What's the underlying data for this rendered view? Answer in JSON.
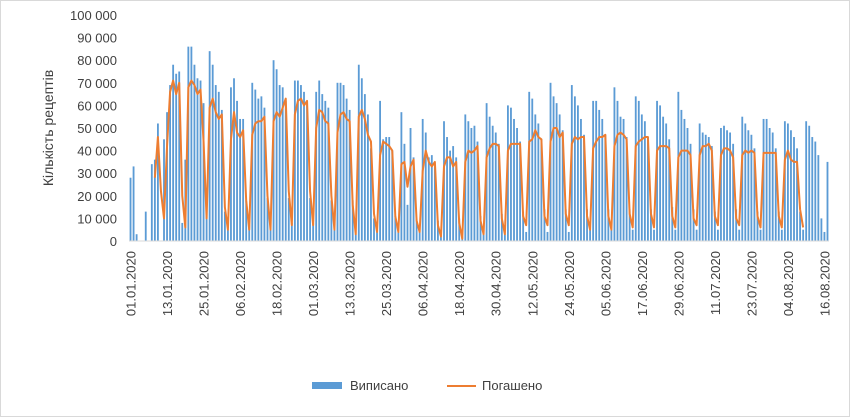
{
  "chart_data": {
    "type": "bar",
    "ylabel": "Кількість рецептів",
    "ylim": [
      0,
      100000
    ],
    "ytick_labels": [
      "0",
      "10 000",
      "20 000",
      "30 000",
      "40 000",
      "50 000",
      "60 000",
      "70 000",
      "80 000",
      "90 000",
      "100 000"
    ],
    "yticks": [
      0,
      10000,
      20000,
      30000,
      40000,
      50000,
      60000,
      70000,
      80000,
      90000,
      100000
    ],
    "x_start": "01.01.2020",
    "x_end": "16.08.2020",
    "x_tick_labels": [
      "01.01.2020",
      "13.01.2020",
      "25.01.2020",
      "06.02.2020",
      "18.02.2020",
      "01.03.2020",
      "13.03.2020",
      "25.03.2020",
      "06.04.2020",
      "18.04.2020",
      "30.04.2020",
      "12.05.2020",
      "24.05.2020",
      "05.06.2020",
      "17.06.2020",
      "29.06.2020",
      "11.07.2020",
      "23.07.2020",
      "04.08.2020",
      "16.08.2020"
    ],
    "grid": false,
    "legend_position": "bottom",
    "series": [
      {
        "name": "Виписано",
        "kind": "bar",
        "color": "#5b9bd5",
        "values": [
          28000,
          33000,
          3000,
          0,
          0,
          13000,
          0,
          34000,
          36000,
          52000,
          0,
          45000,
          57000,
          69000,
          78000,
          74000,
          75000,
          8000,
          36000,
          86000,
          86000,
          78000,
          72000,
          71000,
          61000,
          18000,
          84000,
          78000,
          69000,
          66000,
          58000,
          13000,
          5000,
          68000,
          72000,
          62000,
          54000,
          54000,
          18000,
          7000,
          70000,
          67000,
          63000,
          64000,
          59000,
          19000,
          7000,
          80000,
          76000,
          69000,
          68000,
          62000,
          19000,
          8000,
          71000,
          71000,
          69000,
          66000,
          62000,
          19000,
          8000,
          66000,
          71000,
          65000,
          62000,
          59000,
          18000,
          5000,
          70000,
          70000,
          69000,
          63000,
          58000,
          18000,
          3000,
          78000,
          72000,
          65000,
          56000,
          41000,
          10000,
          4000,
          62000,
          45000,
          46000,
          46000,
          40000,
          11000,
          4000,
          57000,
          43000,
          16000,
          50000,
          37000,
          10000,
          4000,
          54000,
          48000,
          37000,
          38000,
          33000,
          9000,
          3000,
          53000,
          46000,
          40000,
          42000,
          37000,
          10000,
          2000,
          56000,
          53000,
          50000,
          51000,
          44000,
          11000,
          3000,
          61000,
          55000,
          51000,
          48000,
          43000,
          12000,
          3000,
          60000,
          59000,
          54000,
          50000,
          44000,
          13000,
          4000,
          66000,
          63000,
          56000,
          52000,
          45000,
          14000,
          4000,
          70000,
          64000,
          61000,
          56000,
          49000,
          14000,
          4000,
          69000,
          64000,
          60000,
          54000,
          47000,
          14000,
          5000,
          62000,
          62000,
          58000,
          54000,
          47000,
          14000,
          5000,
          68000,
          62000,
          55000,
          54000,
          46000,
          14000,
          5000,
          64000,
          62000,
          56000,
          53000,
          46000,
          14000,
          5000,
          62000,
          60000,
          55000,
          52000,
          45000,
          15000,
          5000,
          66000,
          58000,
          54000,
          50000,
          43000,
          14000,
          5000,
          52000,
          48000,
          47000,
          46000,
          42000,
          13000,
          5000,
          50000,
          51000,
          49000,
          48000,
          43000,
          14000,
          5000,
          55000,
          52000,
          49000,
          47000,
          41000,
          13000,
          5000,
          54000,
          54000,
          50000,
          48000,
          41000,
          13000,
          5000,
          53000,
          52000,
          49000,
          46000,
          41000,
          13000,
          5000,
          53000,
          51000,
          46000,
          44000,
          38000,
          10000,
          4000
        ],
        "plus_one_extra": 35000
      },
      {
        "name": "Погашено",
        "kind": "line",
        "color": "#ed7d31",
        "values": [
          0,
          0,
          0,
          0,
          0,
          0,
          0,
          0,
          28000,
          46000,
          22000,
          10000,
          42000,
          66000,
          71000,
          65000,
          70000,
          20000,
          6000,
          68000,
          71000,
          69000,
          65000,
          67000,
          44000,
          10000,
          59000,
          63000,
          57000,
          54000,
          56000,
          15000,
          5000,
          45000,
          57000,
          48000,
          46000,
          49000,
          18000,
          5000,
          47000,
          52000,
          53000,
          53000,
          55000,
          20000,
          5000,
          53000,
          57000,
          55000,
          59000,
          63000,
          22000,
          7000,
          56000,
          62000,
          63000,
          60000,
          62000,
          22000,
          7000,
          50000,
          58000,
          57000,
          53000,
          52000,
          20000,
          5000,
          48000,
          56000,
          57000,
          54000,
          53000,
          16000,
          3000,
          55000,
          58000,
          54000,
          47000,
          44000,
          12000,
          4000,
          38000,
          44000,
          43000,
          42000,
          40000,
          11000,
          4000,
          34000,
          35000,
          24000,
          33000,
          36000,
          9000,
          4000,
          31000,
          40000,
          35000,
          33000,
          35000,
          7000,
          2000,
          33000,
          37000,
          37000,
          33000,
          35000,
          8000,
          1000,
          35000,
          40000,
          39000,
          40000,
          42000,
          9000,
          3000,
          37000,
          41000,
          43000,
          43000,
          42000,
          10000,
          3000,
          40000,
          43000,
          43000,
          43000,
          43000,
          11000,
          7000,
          44000,
          45000,
          49000,
          46000,
          45000,
          11000,
          7000,
          44000,
          50000,
          50000,
          46000,
          48000,
          12000,
          7000,
          43000,
          46000,
          45000,
          46000,
          46000,
          11000,
          5000,
          41000,
          44000,
          46000,
          46000,
          47000,
          11000,
          5000,
          42000,
          47000,
          48000,
          47000,
          45000,
          12000,
          6000,
          42000,
          44000,
          45000,
          46000,
          46000,
          12000,
          6000,
          40000,
          42000,
          42000,
          42000,
          41000,
          11000,
          6000,
          37000,
          40000,
          40000,
          40000,
          38000,
          10000,
          7000,
          38000,
          42000,
          42000,
          43000,
          40000,
          11000,
          7000,
          38000,
          41000,
          41000,
          40000,
          37000,
          10000,
          7000,
          38000,
          40000,
          39000,
          40000,
          39000,
          11000,
          6000,
          39000,
          39000,
          39000,
          39000,
          39000,
          11000,
          6000,
          36000,
          40000,
          36000,
          35000,
          35000,
          14000,
          6000
        ]
      }
    ]
  }
}
